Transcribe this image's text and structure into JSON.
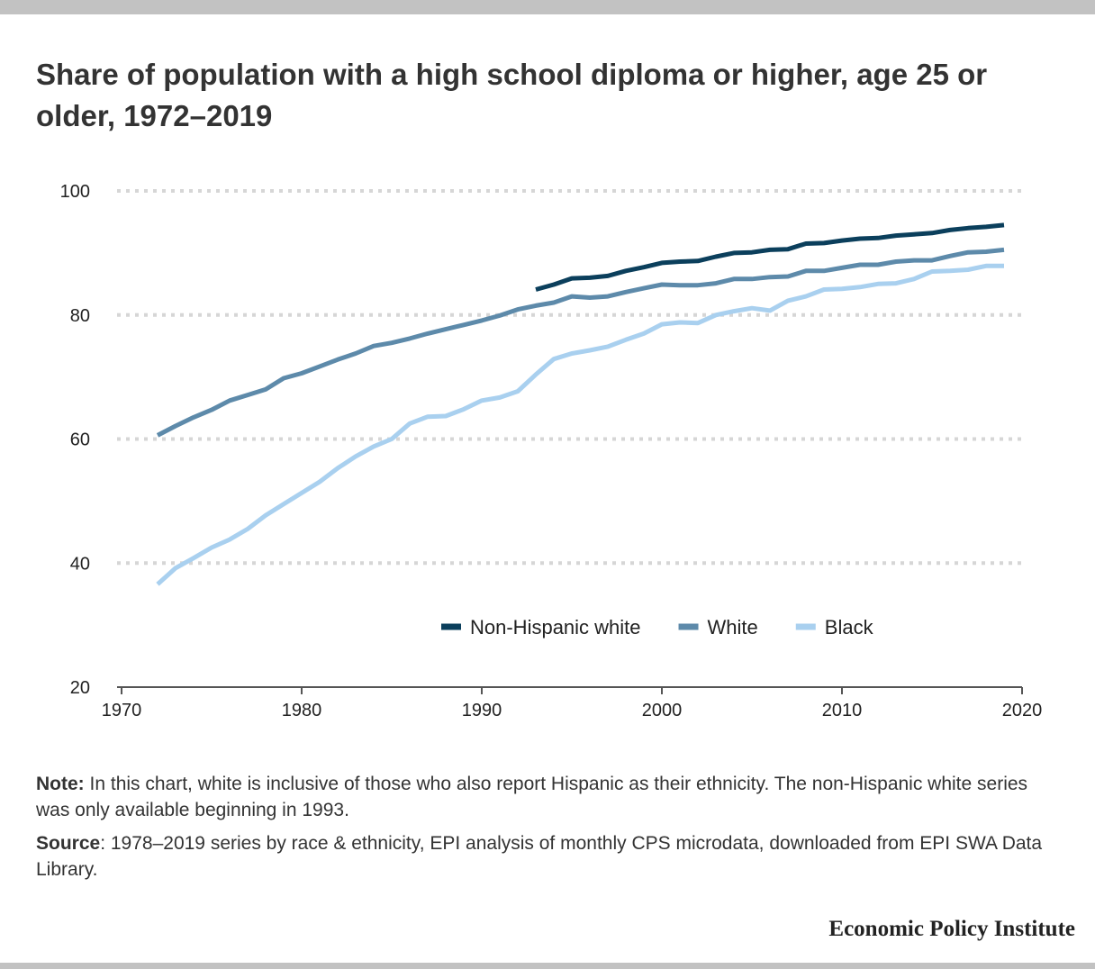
{
  "chart_data": {
    "type": "line",
    "title": "Share of population with a high school diploma or higher, age 25 or older, 1972–2019",
    "xlabel": "",
    "ylabel": "",
    "xlim": [
      1970,
      2020
    ],
    "ylim": [
      20,
      100
    ],
    "x_ticks": [
      1970,
      1980,
      1990,
      2000,
      2010,
      2020
    ],
    "y_ticks": [
      20,
      40,
      60,
      80,
      100
    ],
    "grid": "horizontal dotted",
    "legend_position": "bottom-right",
    "series": [
      {
        "name": "Non-Hispanic white",
        "color": "#0b3f5c",
        "x": [
          1993,
          1994,
          1995,
          1996,
          1997,
          1998,
          1999,
          2000,
          2001,
          2002,
          2003,
          2004,
          2005,
          2006,
          2007,
          2008,
          2009,
          2010,
          2011,
          2012,
          2013,
          2014,
          2015,
          2016,
          2017,
          2018,
          2019
        ],
        "values": [
          84.1,
          84.9,
          85.9,
          86.0,
          86.3,
          87.1,
          87.7,
          88.4,
          88.6,
          88.7,
          89.4,
          90.0,
          90.1,
          90.5,
          90.6,
          91.5,
          91.6,
          92.0,
          92.3,
          92.4,
          92.8,
          93.0,
          93.2,
          93.7,
          94.0,
          94.2,
          94.5
        ]
      },
      {
        "name": "White",
        "color": "#5d8aaa",
        "x": [
          1972,
          1973,
          1974,
          1975,
          1976,
          1977,
          1978,
          1979,
          1980,
          1981,
          1982,
          1983,
          1984,
          1985,
          1986,
          1987,
          1988,
          1989,
          1990,
          1991,
          1992,
          1993,
          1994,
          1995,
          1996,
          1997,
          1998,
          1999,
          2000,
          2001,
          2002,
          2003,
          2004,
          2005,
          2006,
          2007,
          2008,
          2009,
          2010,
          2011,
          2012,
          2013,
          2014,
          2015,
          2016,
          2017,
          2018,
          2019
        ],
        "values": [
          60.6,
          62.1,
          63.5,
          64.7,
          66.2,
          67.1,
          68.0,
          69.8,
          70.6,
          71.7,
          72.8,
          73.8,
          75.0,
          75.5,
          76.2,
          77.0,
          77.7,
          78.4,
          79.1,
          79.9,
          80.9,
          81.5,
          82.0,
          83.0,
          82.8,
          83.0,
          83.7,
          84.3,
          84.9,
          84.8,
          84.8,
          85.1,
          85.8,
          85.8,
          86.1,
          86.2,
          87.1,
          87.1,
          87.6,
          88.1,
          88.1,
          88.6,
          88.8,
          88.8,
          89.5,
          90.1,
          90.2,
          90.5
        ]
      },
      {
        "name": "Black",
        "color": "#a9d0ef",
        "x": [
          1972,
          1973,
          1974,
          1975,
          1976,
          1977,
          1978,
          1979,
          1980,
          1981,
          1982,
          1983,
          1984,
          1985,
          1986,
          1987,
          1988,
          1989,
          1990,
          1991,
          1992,
          1993,
          1994,
          1995,
          1996,
          1997,
          1998,
          1999,
          2000,
          2001,
          2002,
          2003,
          2004,
          2005,
          2006,
          2007,
          2008,
          2009,
          2010,
          2011,
          2012,
          2013,
          2014,
          2015,
          2016,
          2017,
          2018,
          2019
        ],
        "values": [
          36.6,
          39.2,
          40.8,
          42.5,
          43.8,
          45.5,
          47.7,
          49.5,
          51.3,
          53.1,
          55.3,
          57.2,
          58.8,
          60.0,
          62.5,
          63.6,
          63.7,
          64.8,
          66.2,
          66.7,
          67.7,
          70.4,
          72.9,
          73.8,
          74.3,
          74.9,
          76.0,
          77.0,
          78.5,
          78.8,
          78.7,
          80.0,
          80.6,
          81.1,
          80.7,
          82.3,
          83.0,
          84.1,
          84.2,
          84.5,
          85.0,
          85.1,
          85.8,
          87.0,
          87.1,
          87.3,
          87.9,
          87.9
        ]
      }
    ]
  },
  "notes": {
    "note_label": "Note:",
    "note_text": " In this chart, white is inclusive of those who also report Hispanic as their ethnicity. The non-Hispanic white series was only available beginning in 1993.",
    "source_label": "Source",
    "source_text": ": 1978–2019 series by race & ethnicity, EPI analysis of monthly CPS microdata, downloaded from EPI SWA Data Library."
  },
  "brand": "Economic Policy Institute"
}
